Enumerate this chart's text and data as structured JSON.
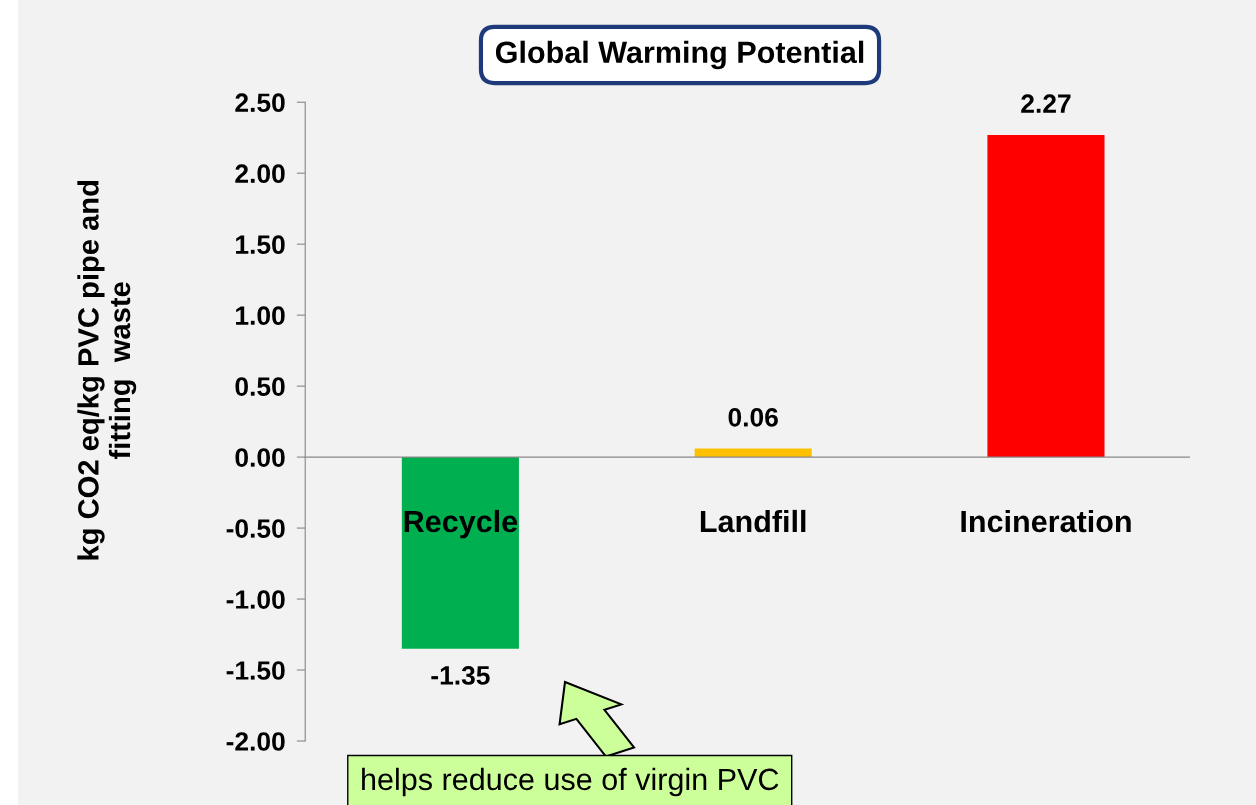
{
  "chart_data": {
    "type": "bar",
    "title": "Global Warming Potential",
    "ylabel": "kg CO2 eq/kg PVC pipe and\nfitting  waste",
    "categories": [
      "Recycle",
      "Landfill",
      "Incineration"
    ],
    "values": [
      -1.35,
      0.06,
      2.27
    ],
    "colors": [
      "#00b050",
      "#ffc000",
      "#ff0000"
    ],
    "ylim": [
      -2.0,
      2.5
    ],
    "yticks": [
      {
        "value": 2.5,
        "label": "2.50"
      },
      {
        "value": 2.0,
        "label": "2.00"
      },
      {
        "value": 1.5,
        "label": "1.50"
      },
      {
        "value": 1.0,
        "label": "1.00"
      },
      {
        "value": 0.5,
        "label": "0.50"
      },
      {
        "value": 0.0,
        "label": "0.00"
      },
      {
        "value": -0.5,
        "label": "-0.50"
      },
      {
        "value": -1.0,
        "label": "-1.00"
      },
      {
        "value": -1.5,
        "label": "-1.50"
      },
      {
        "value": -2.0,
        "label": "-2.00"
      }
    ],
    "value_labels": [
      "-1.35",
      "0.06",
      "2.27"
    ],
    "annotations": [
      "helps reduce use of virgin PVC"
    ],
    "grid": false,
    "legend": false
  }
}
